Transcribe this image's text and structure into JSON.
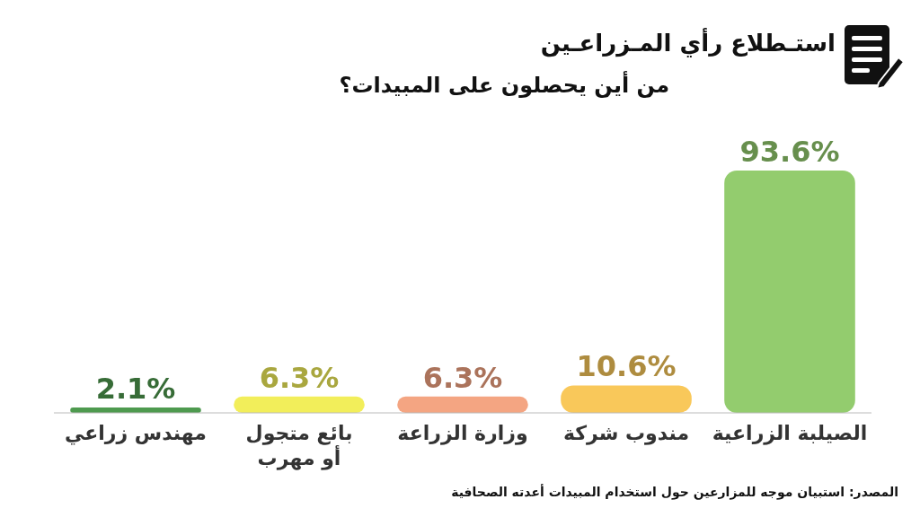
{
  "chart_data": {
    "type": "bar",
    "title": "استـطلاع رأي المـزراعـين",
    "subtitle": "من أين يحصلون على المبيدات؟",
    "categories": [
      "مهندس زراعي",
      "بائع متجول أو مهرب",
      "وزارة الزراعة",
      "مندوب شركة",
      "الصيلبة الزراعية"
    ],
    "values": [
      2.1,
      6.3,
      6.3,
      10.6,
      93.6
    ],
    "value_labels": [
      "2.1%",
      "6.3%",
      "6.3%",
      "10.6%",
      "93.6%"
    ],
    "colors": [
      "#4e9a4f",
      "#f2ee5a",
      "#f4a582",
      "#f9c85a",
      "#93cc6e"
    ],
    "annotations": [
      "المصدر: استبيان موجه للمزارعين حول استخدام المبيدات أعدته الصحافية"
    ]
  }
}
